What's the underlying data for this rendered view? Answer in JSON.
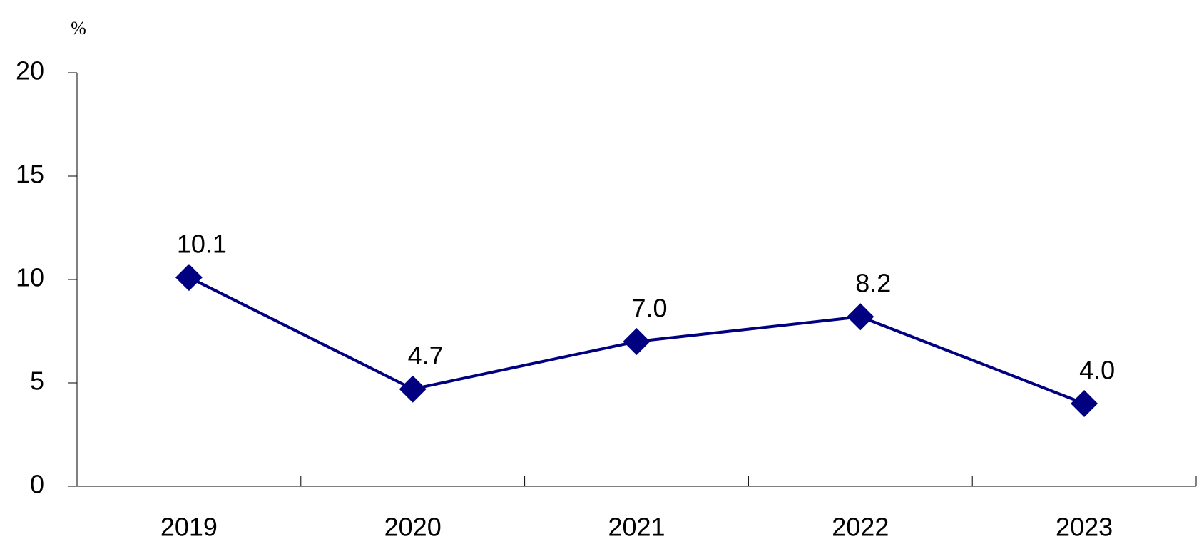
{
  "chart_data": {
    "type": "line",
    "y_unit": "%",
    "categories": [
      "2019",
      "2020",
      "2021",
      "2022",
      "2023"
    ],
    "series": [
      {
        "color": "#000080",
        "values": [
          10.1,
          4.7,
          7.0,
          8.2,
          4.0
        ],
        "value_labels": [
          "10.1",
          "4.7",
          "7.0",
          "8.2",
          "4.0"
        ]
      }
    ],
    "ylim": [
      0,
      20
    ],
    "yticks": [
      0,
      5,
      10,
      15,
      20
    ]
  }
}
